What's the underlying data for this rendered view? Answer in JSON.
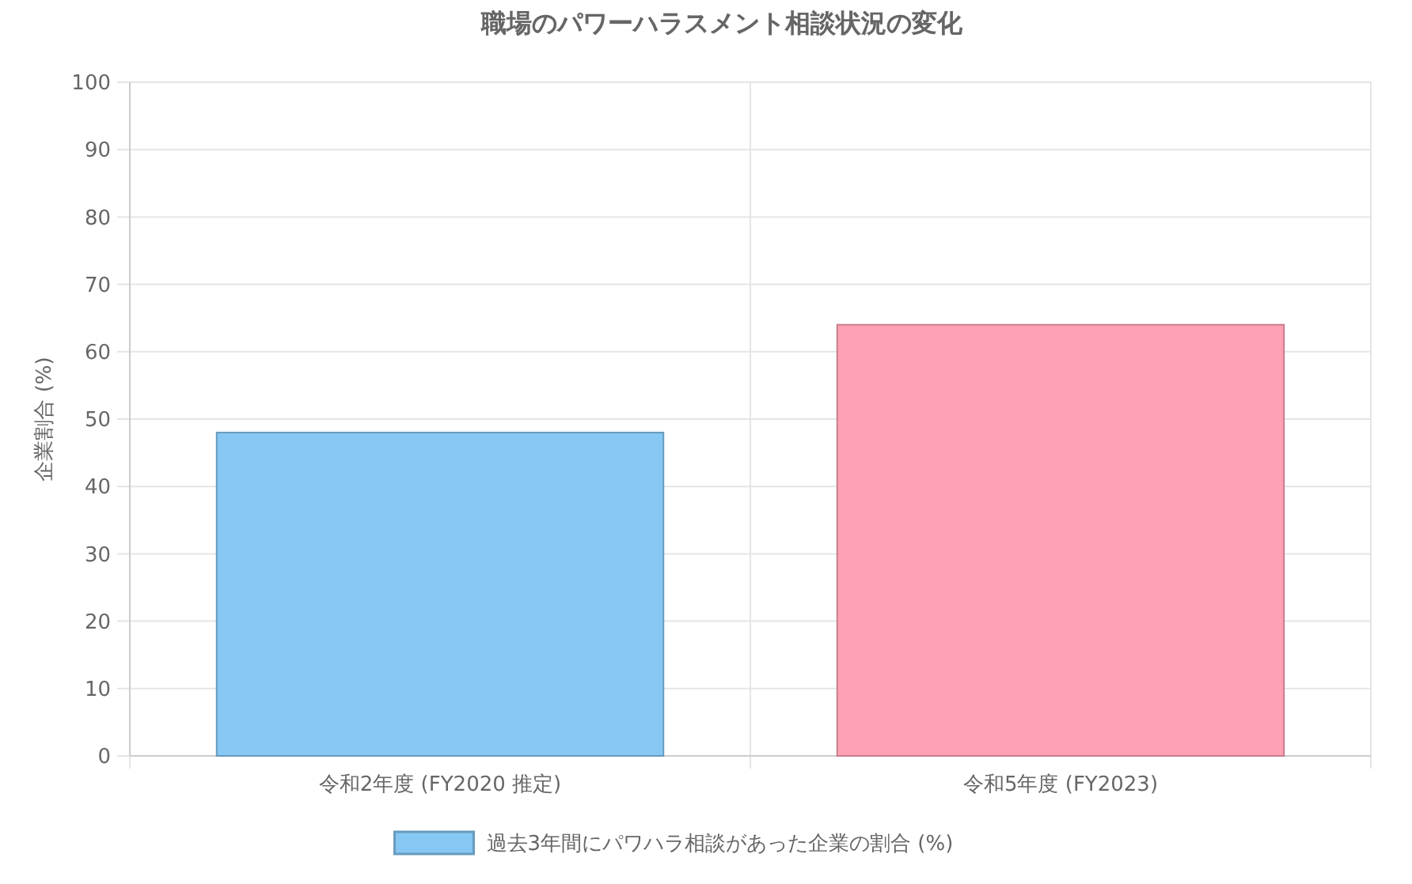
{
  "chart_data": {
    "type": "bar",
    "title": "職場のパワーハラスメント相談状況の変化",
    "ylabel": "企業割合 (%)",
    "categories": [
      "令和2年度 (FY2020 推定)",
      "令和5年度 (FY2023)"
    ],
    "series": [
      {
        "name": "過去3年間にパワハラ相談があった企業の割合 (%)",
        "values": [
          48,
          64
        ],
        "colors": [
          "#86c7f3",
          "#ffa1b5"
        ]
      }
    ],
    "ylim": [
      0,
      100
    ],
    "yticks": [
      0,
      10,
      20,
      30,
      40,
      50,
      60,
      70,
      80,
      90,
      100
    ],
    "grid": true,
    "legend": "bottom"
  }
}
